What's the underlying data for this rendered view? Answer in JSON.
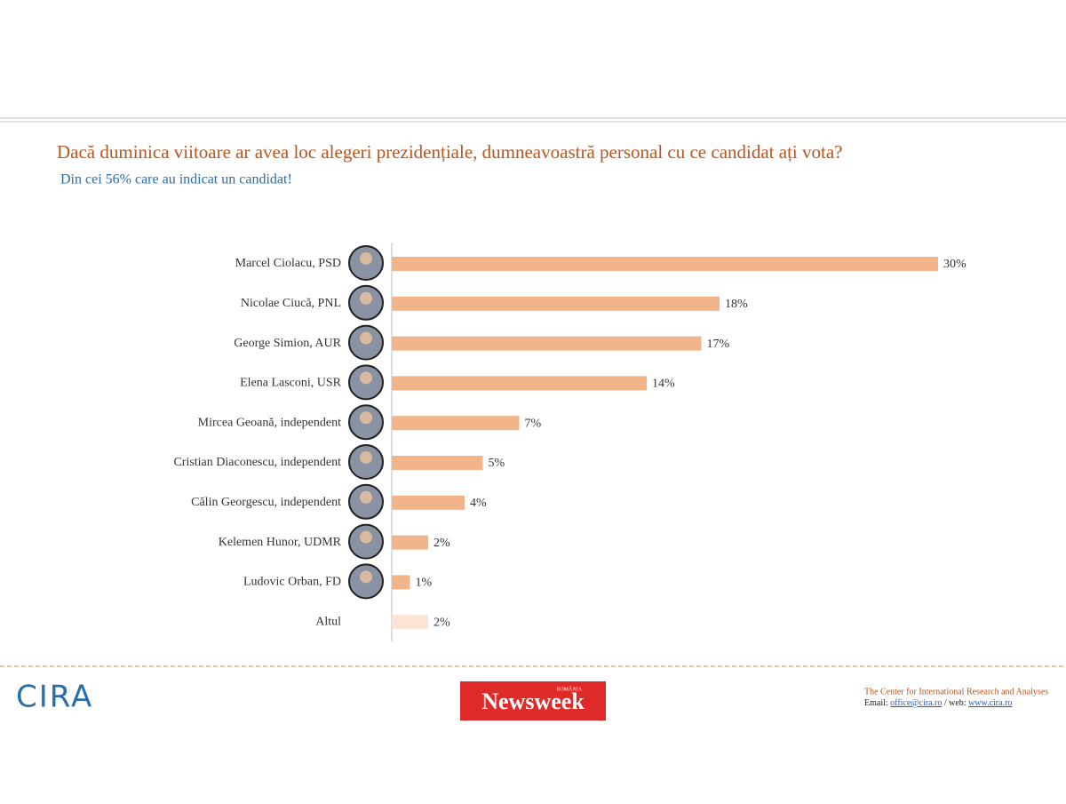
{
  "chart_data": {
    "type": "barh",
    "title": "Dacă duminica viitoare ar avea loc alegeri prezidențiale, dumneavoastră personal cu ce candidat ați vota?",
    "subtitle": "Din cei 56% care au indicat un candidat!",
    "categories": [
      "Marcel Ciolacu, PSD",
      "Nicolae Ciucă, PNL",
      "George Simion, AUR",
      "Elena Lasconi, USR",
      "Mircea Geoană, independent",
      "Cristian Diaconescu, independent",
      "Călin Georgescu, independent",
      "Kelemen Hunor, UDMR",
      "Ludovic Orban, FD",
      "Altul"
    ],
    "values": [
      30,
      18,
      17,
      14,
      7,
      5,
      4,
      2,
      1,
      2
    ],
    "value_labels": [
      "30%",
      "18%",
      "17%",
      "14%",
      "7%",
      "5%",
      "4%",
      "2%",
      "1%",
      "2%"
    ],
    "colors": [
      "#f2b48a",
      "#f2b48a",
      "#f2b48a",
      "#f2b48a",
      "#f2b48a",
      "#f2b48a",
      "#f2b48a",
      "#f2b48a",
      "#f2b48a",
      "#fbe3d6"
    ],
    "xlim": [
      0,
      30
    ]
  },
  "footer": {
    "logo": "CIRA",
    "newsweek": "Newsweek",
    "newsweek_edition": "ROMÂNIA",
    "org": "The Center for International Research and Analyses",
    "email_label": "Email:",
    "email": "office@cira.ro",
    "web_label": "/ web:",
    "web": "www.cira.ro"
  }
}
